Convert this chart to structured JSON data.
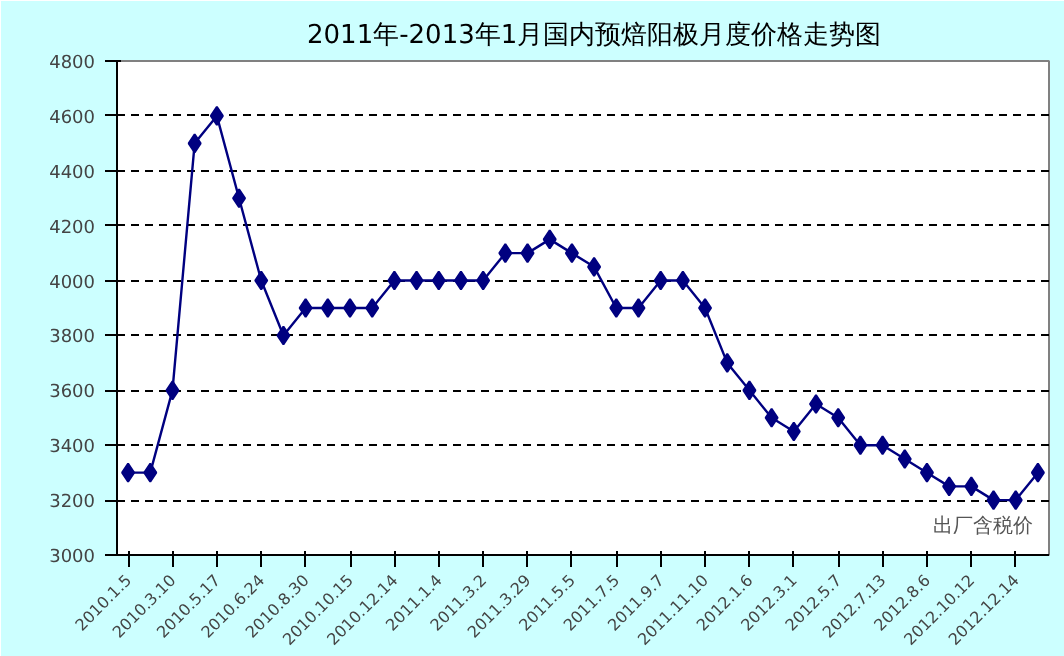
{
  "chart_data": {
    "type": "line",
    "title": "2011年-2013年1月国内预焙阳极月度价格走势图",
    "subtitle": "出厂含税价",
    "categories": [
      "2010.1.5",
      null,
      "2010.3.10",
      null,
      "2010.5.17",
      null,
      "2010.6.24",
      null,
      "2010.8.30",
      null,
      "2010.10.15",
      null,
      "2010.12.14",
      null,
      "2011.1.4",
      null,
      "2011.3.2",
      null,
      "2011.3.29",
      null,
      "2011.5.5",
      null,
      "2011.7.5",
      null,
      "2011.9.7",
      null,
      "2011.11.10",
      null,
      "2012.1.6",
      null,
      "2012.3.1",
      null,
      "2012.5.7",
      null,
      "2012.7.13",
      null,
      "2012.8.6",
      null,
      "2012.10.12",
      null,
      "2012.12.14",
      null
    ],
    "series": [
      {
        "color": "#000080",
        "values": [
          3300,
          3300,
          3600,
          4500,
          4600,
          4300,
          4000,
          3800,
          3900,
          3900,
          3900,
          3900,
          4000,
          4000,
          4000,
          4000,
          4000,
          4100,
          4100,
          4150,
          4100,
          4050,
          3900,
          3900,
          4000,
          4000,
          3900,
          3700,
          3600,
          3500,
          3450,
          3550,
          3500,
          3400,
          3400,
          3350,
          3300,
          3250,
          3250,
          3200,
          3200,
          3300
        ]
      }
    ],
    "ylim": [
      3000,
      4800
    ],
    "yticks": [
      3000,
      3200,
      3400,
      3600,
      3800,
      4000,
      4200,
      4400,
      4600,
      4800
    ],
    "grid": "y",
    "marker": "diamond",
    "line_style": "solid"
  }
}
